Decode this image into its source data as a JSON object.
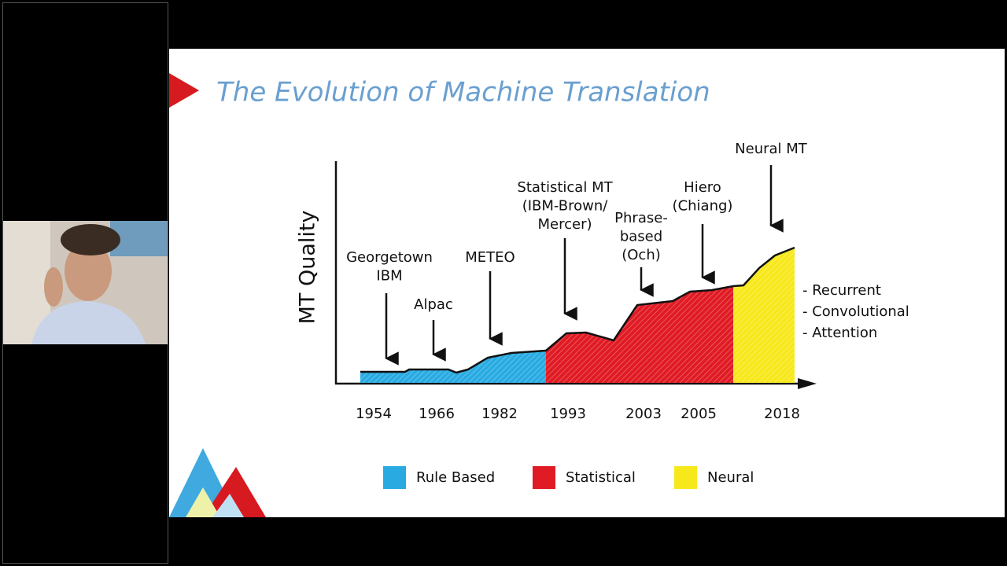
{
  "slide": {
    "title": "The Evolution of Machine Translation",
    "chart": {
      "y_axis_label": "MT Quality",
      "x_labels": [
        "1954",
        "1966",
        "1982",
        "1993",
        "2003",
        "2005",
        "2018"
      ],
      "annotations": [
        {
          "lines": [
            "Georgetown",
            "IBM"
          ]
        },
        {
          "lines": [
            "Alpac"
          ]
        },
        {
          "lines": [
            "METEO"
          ]
        },
        {
          "lines": [
            "Statistical MT",
            "(IBM-Brown/",
            "Mercer)"
          ]
        },
        {
          "lines": [
            "Phrase-",
            "based",
            "(Och)"
          ]
        },
        {
          "lines": [
            "Hiero",
            "(Chiang)"
          ]
        },
        {
          "lines": [
            "Neural MT"
          ]
        }
      ],
      "bullets": [
        "- Recurrent",
        "- Convolutional",
        "- Attention"
      ],
      "legend": [
        {
          "label": "Rule Based",
          "color": "#29abe2"
        },
        {
          "label": "Statistical",
          "color": "#e01b24"
        },
        {
          "label": "Neural",
          "color": "#f7e81c"
        }
      ]
    }
  }
}
